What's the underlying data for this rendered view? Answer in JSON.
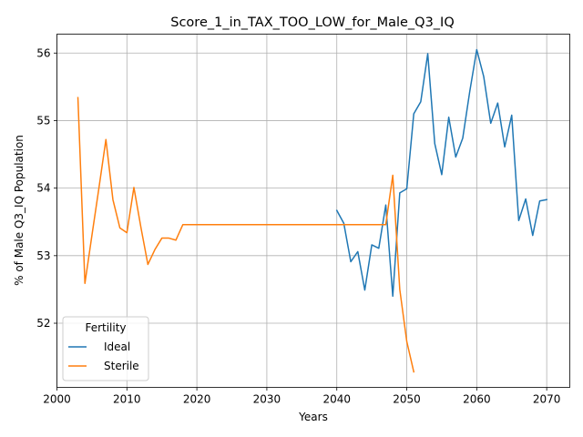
{
  "chart_data": {
    "type": "line",
    "title": "Score_1_in_TAX_TOO_LOW_for_Male_Q3_IQ",
    "xlabel": "Years",
    "ylabel": "% of Male Q3_IQ Population",
    "xlim": [
      2000,
      2073.3
    ],
    "ylim": [
      51.05,
      56.28
    ],
    "xticks": [
      2000,
      2010,
      2020,
      2030,
      2040,
      2050,
      2060,
      2070
    ],
    "yticks": [
      52,
      53,
      54,
      55,
      56
    ],
    "grid": true,
    "legend": {
      "title": "Fertility",
      "placement": "lower-left"
    },
    "series": [
      {
        "name": "Ideal",
        "color": "#1f77b4",
        "x": [
          2040,
          2041,
          2042,
          2043,
          2044,
          2045,
          2046,
          2047,
          2048,
          2049,
          2050,
          2051,
          2052,
          2053,
          2054,
          2055,
          2056,
          2057,
          2058,
          2059,
          2060,
          2061,
          2062,
          2063,
          2064,
          2065,
          2066,
          2067,
          2068,
          2069,
          2070
        ],
        "y": [
          53.67,
          53.48,
          52.91,
          53.06,
          52.49,
          53.16,
          53.11,
          53.75,
          52.4,
          53.93,
          53.99,
          55.1,
          55.28,
          55.99,
          54.66,
          54.2,
          55.05,
          54.46,
          54.74,
          55.43,
          56.05,
          55.65,
          54.96,
          55.26,
          54.61,
          55.08,
          53.52,
          53.84,
          53.3,
          53.81,
          53.83
        ]
      },
      {
        "name": "Sterile",
        "color": "#ff7f0e",
        "x": [
          2003,
          2004,
          2005,
          2006,
          2007,
          2008,
          2009,
          2010,
          2011,
          2012,
          2013,
          2014,
          2015,
          2016,
          2017,
          2018,
          2019,
          2020,
          2021,
          2022,
          2023,
          2024,
          2025,
          2026,
          2027,
          2028,
          2029,
          2030,
          2031,
          2032,
          2033,
          2034,
          2035,
          2036,
          2037,
          2038,
          2039,
          2040,
          2041,
          2042,
          2043,
          2044,
          2045,
          2046,
          2047,
          2048,
          2049,
          2050,
          2051
        ],
        "y": [
          55.34,
          52.59,
          53.3,
          54.0,
          54.72,
          53.83,
          53.41,
          53.34,
          54.01,
          53.42,
          52.87,
          53.09,
          53.26,
          53.26,
          53.23,
          53.46,
          53.46,
          53.46,
          53.46,
          53.46,
          53.46,
          53.46,
          53.46,
          53.46,
          53.46,
          53.46,
          53.46,
          53.46,
          53.46,
          53.46,
          53.46,
          53.46,
          53.46,
          53.46,
          53.46,
          53.46,
          53.46,
          53.46,
          53.46,
          53.46,
          53.46,
          53.46,
          53.46,
          53.46,
          53.46,
          54.19,
          52.5,
          51.73,
          51.28
        ]
      }
    ]
  }
}
